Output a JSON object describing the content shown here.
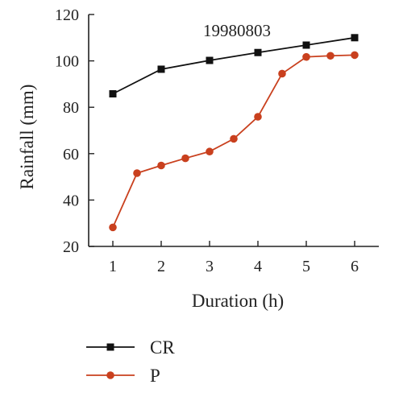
{
  "chart_data": {
    "type": "line",
    "title": "19980803",
    "xlabel": "Duration (h)",
    "ylabel": "Rainfall (mm)",
    "xlim": [
      0.5,
      6.5
    ],
    "ylim": [
      20,
      120
    ],
    "xticks": [
      1,
      2,
      3,
      4,
      5,
      6
    ],
    "yticks": [
      20,
      40,
      60,
      80,
      100,
      120
    ],
    "grid": false,
    "legend_position": "bottom-left",
    "series": [
      {
        "name": "CR",
        "color": "#111111",
        "marker": "square",
        "x": [
          1,
          2,
          3,
          4,
          5,
          6
        ],
        "y": [
          85.8,
          96.4,
          100.2,
          103.6,
          106.8,
          110.0
        ]
      },
      {
        "name": "P",
        "color": "#c9401e",
        "marker": "circle",
        "x": [
          1,
          1.5,
          2,
          2.5,
          3,
          3.5,
          4,
          4.5,
          5,
          5.5,
          6
        ],
        "y": [
          28.2,
          51.6,
          54.9,
          58.0,
          60.9,
          66.4,
          75.9,
          94.5,
          101.7,
          102.2,
          102.5
        ]
      }
    ]
  }
}
